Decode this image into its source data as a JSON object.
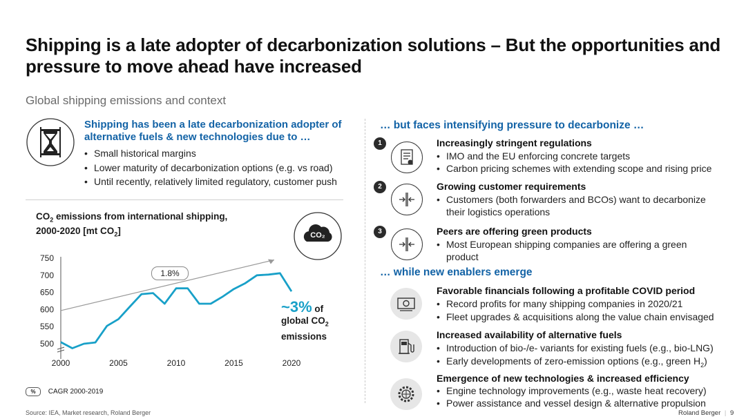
{
  "title": "Shipping is a late adopter of decarbonization solutions – But the opportunities and pressure to move ahead have increased",
  "subtitle": "Global shipping emissions and context",
  "left": {
    "heading": "Shipping has been a late decarbonization adopter of alternative fuels & new technologies due to …",
    "bullets": [
      "Small historical margins",
      "Lower maturity of decarbonization options (e.g. vs road)",
      "Until recently, relatively limited regulatory, customer push"
    ],
    "icon": "hourglass-icon"
  },
  "chart_title_line1": "emissions from international shipping,",
  "chart_title_co": "CO",
  "chart_title_sub": "2",
  "chart_title_line2_pre": "2000-2020 [mt CO",
  "chart_title_line2_post": "]",
  "cagr_label": "1.8%",
  "highlight": {
    "value": "~3%",
    "of": "of",
    "line2": "global CO",
    "line2_sub": "2",
    "line3": "emissions"
  },
  "co2_badge": "CO₂",
  "legend": {
    "symbol": "%",
    "text": "CAGR 2000-2019"
  },
  "chart_data": {
    "type": "line",
    "title": "CO2 emissions from international shipping, 2000-2020 [mt CO2]",
    "x": [
      2000,
      2001,
      2002,
      2003,
      2004,
      2005,
      2006,
      2007,
      2008,
      2009,
      2010,
      2011,
      2012,
      2013,
      2014,
      2015,
      2016,
      2017,
      2018,
      2019,
      2020
    ],
    "values": [
      505,
      487,
      500,
      504,
      552,
      572,
      609,
      645,
      648,
      617,
      662,
      662,
      617,
      617,
      637,
      660,
      677,
      700,
      702,
      706,
      653
    ],
    "x_ticks": [
      2000,
      2005,
      2010,
      2015,
      2020
    ],
    "y_ticks": [
      500,
      550,
      600,
      650,
      700,
      750
    ],
    "ylim": [
      480,
      760
    ],
    "axis_break": true,
    "trend_label": "1.8%",
    "color": "#18a0c8"
  },
  "right": {
    "pressure_heading": "… but faces intensifying pressure to decarbonize …",
    "pressures": [
      {
        "num": "1",
        "icon": "regulation-document-icon",
        "title": "Increasingly stringent regulations",
        "bullets": [
          "IMO and the EU enforcing concrete targets",
          "Carbon pricing schemes with extending scope and rising price"
        ]
      },
      {
        "num": "2",
        "icon": "compress-arrows-icon",
        "title": "Growing customer requirements",
        "bullets": [
          "Customers (both forwarders and BCOs) want to decarbonize their logistics operations"
        ]
      },
      {
        "num": "3",
        "icon": "compress-arrows-icon",
        "title": "Peers are offering green products",
        "bullets": [
          "Most European shipping companies are offering a green product"
        ]
      }
    ],
    "enabler_heading": "… while new enablers emerge",
    "enablers": [
      {
        "icon": "banknote-icon",
        "title": "Favorable financials following a profitable COVID period",
        "bullets": [
          "Record profits for many shipping companies in 2020/21",
          "Fleet upgrades & acquisitions along the value chain envisaged"
        ]
      },
      {
        "icon": "fuel-pump-icon",
        "title": "Increased availability of alternative fuels",
        "bullets": [
          "Introduction of bio-/e- variants for existing fuels (e.g., bio-LNG)",
          "Early developments of zero-emission options (e.g., green H"
        ],
        "sub": "2",
        "tail": ")"
      },
      {
        "icon": "gear-globe-icon",
        "title": "Emergence of new technologies & increased efficiency",
        "bullets": [
          "Engine technology improvements (e.g., waste heat recovery)",
          "Power assistance and vessel design & alternative propulsion"
        ]
      }
    ]
  },
  "footer": {
    "source": "Source: IEA, Market research, Roland Berger",
    "brand": "Roland Berger",
    "page": "9"
  }
}
